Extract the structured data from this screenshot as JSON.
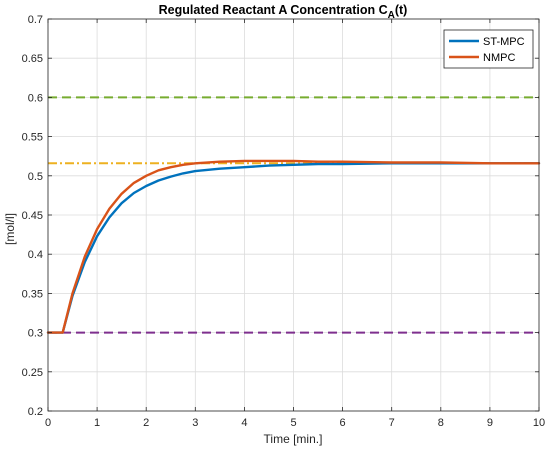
{
  "chart_data": {
    "type": "line",
    "title": "Regulated Reactant A Concentration C",
    "title_subscript": "A",
    "title_suffix": "(t)",
    "xlabel": "Time [min.]",
    "ylabel": "[mol/l]",
    "xlim": [
      0,
      10
    ],
    "ylim": [
      0.2,
      0.7
    ],
    "xticks": [
      0,
      1,
      2,
      3,
      4,
      5,
      6,
      7,
      8,
      9,
      10
    ],
    "yticks": [
      0.2,
      0.25,
      0.3,
      0.35,
      0.4,
      0.45,
      0.5,
      0.55,
      0.6,
      0.65,
      0.7
    ],
    "grid": true,
    "legend_position": "top-right",
    "series": [
      {
        "name": "ST-MPC",
        "color": "#0072BD",
        "x": [
          0,
          0.3,
          0.5,
          0.75,
          1.0,
          1.25,
          1.5,
          1.75,
          2.0,
          2.25,
          2.5,
          2.75,
          3.0,
          3.5,
          4.0,
          4.5,
          5.0,
          5.5,
          6.0,
          7.0,
          8.0,
          9.0,
          10.0
        ],
        "y": [
          0.3,
          0.3,
          0.347,
          0.39,
          0.423,
          0.447,
          0.465,
          0.478,
          0.487,
          0.494,
          0.499,
          0.503,
          0.506,
          0.509,
          0.511,
          0.513,
          0.514,
          0.515,
          0.515,
          0.516,
          0.516,
          0.516,
          0.516
        ]
      },
      {
        "name": "NMPC",
        "color": "#D95319",
        "x": [
          0,
          0.3,
          0.5,
          0.75,
          1.0,
          1.25,
          1.5,
          1.75,
          2.0,
          2.25,
          2.5,
          2.75,
          3.0,
          3.5,
          4.0,
          4.5,
          5.0,
          5.5,
          6.0,
          7.0,
          8.0,
          9.0,
          10.0
        ],
        "y": [
          0.3,
          0.3,
          0.35,
          0.397,
          0.432,
          0.458,
          0.477,
          0.491,
          0.5,
          0.507,
          0.511,
          0.514,
          0.516,
          0.518,
          0.519,
          0.519,
          0.519,
          0.518,
          0.518,
          0.517,
          0.517,
          0.516,
          0.516
        ]
      }
    ],
    "reference_lines": [
      {
        "y": 0.6,
        "color": "#77AC30",
        "style": "dashed"
      },
      {
        "y": 0.516,
        "color": "#EDB120",
        "style": "dash-dot"
      },
      {
        "y": 0.3,
        "color": "#7E2F8E",
        "style": "dashed"
      }
    ]
  }
}
